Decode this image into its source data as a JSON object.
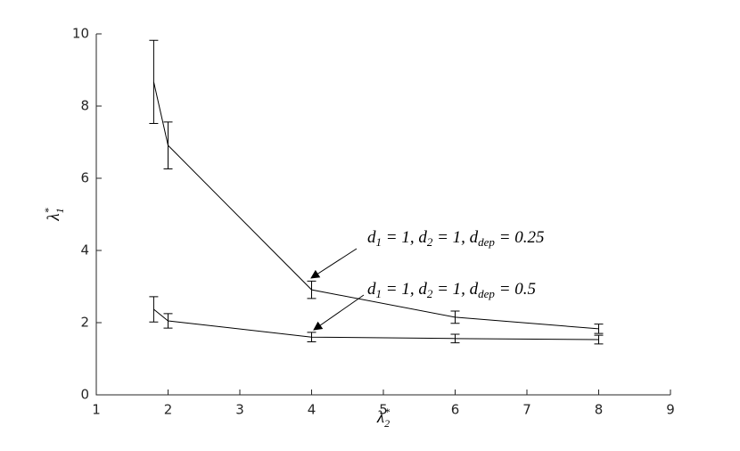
{
  "chart_data": {
    "type": "errorbar-line",
    "xlabel": {
      "base": "λ",
      "sup": "*",
      "sub": "2"
    },
    "ylabel": {
      "base": "λ",
      "sup": "*",
      "sub": "1"
    },
    "x": [
      1.8,
      2,
      4,
      6,
      8
    ],
    "series": [
      {
        "color": "#000000",
        "values": [
          8.67,
          6.91,
          2.91,
          2.15,
          1.83
        ],
        "errors": [
          1.15,
          0.65,
          0.24,
          0.17,
          0.13
        ]
      },
      {
        "color": "#000000",
        "values": [
          2.37,
          2.05,
          1.6,
          1.56,
          1.53
        ],
        "errors": [
          0.35,
          0.2,
          0.13,
          0.12,
          0.12
        ]
      }
    ],
    "annotations": [
      {
        "parts": [
          {
            "text": "d"
          },
          {
            "sub": "1"
          },
          {
            "text": " = 1, d"
          },
          {
            "sub": "2"
          },
          {
            "text": " = 1, d"
          },
          {
            "sub": "dep"
          },
          {
            "text": " = 0.25"
          }
        ]
      },
      {
        "parts": [
          {
            "text": "d"
          },
          {
            "sub": "1"
          },
          {
            "text": " = 1, d"
          },
          {
            "sub": "2"
          },
          {
            "text": " = 1, d"
          },
          {
            "sub": "dep"
          },
          {
            "text": " = 0.5"
          }
        ]
      }
    ],
    "xlim": [
      1,
      9
    ],
    "xticks": [
      1,
      2,
      3,
      4,
      5,
      6,
      7,
      8,
      9
    ],
    "ylim": [
      0,
      10
    ],
    "yticks": [
      0,
      2,
      4,
      6,
      8,
      10
    ],
    "grid": false
  }
}
